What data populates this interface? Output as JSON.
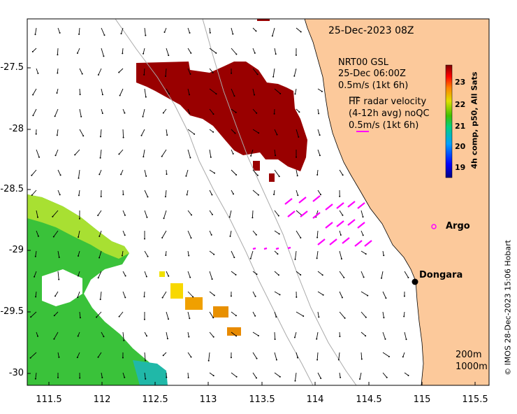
{
  "title": "25-Dec-2023 08Z",
  "model_legend": {
    "line1": "NRT00 GSL",
    "line2": "25-Dec 06:00Z",
    "scale": "0.5m/s (1kt 6h)"
  },
  "hf_legend": {
    "line1": "HF radar velocity",
    "line2": "(4-12h avg) noQC",
    "scale": "0.5m/s (1kt 6h)"
  },
  "colorbar": {
    "label": "4h comp, p50, All Sats",
    "ticks": [
      "19",
      "20",
      "21",
      "22",
      "23"
    ]
  },
  "places": {
    "argo": "Argo",
    "dongara": "Dongara"
  },
  "contours": {
    "c200": "200m",
    "c1000": "1000m"
  },
  "credit": "© IMOS 28-Dec-2023 15:06 Hobart",
  "axes": {
    "x_ticks": [
      "111.5",
      "112",
      "112.5",
      "113",
      "113.5",
      "114",
      "114.5",
      "115",
      "115.5"
    ],
    "y_ticks": [
      "-27.5",
      "-28",
      "-28.5",
      "-29",
      "-29.5",
      "-30"
    ],
    "x_range": [
      111.3,
      115.65
    ],
    "y_range": [
      -30.1,
      -27.1
    ]
  },
  "colors": {
    "land": "#fcc99b",
    "sst_hot": "#990000",
    "hf_vectors": "#ff00ff"
  }
}
